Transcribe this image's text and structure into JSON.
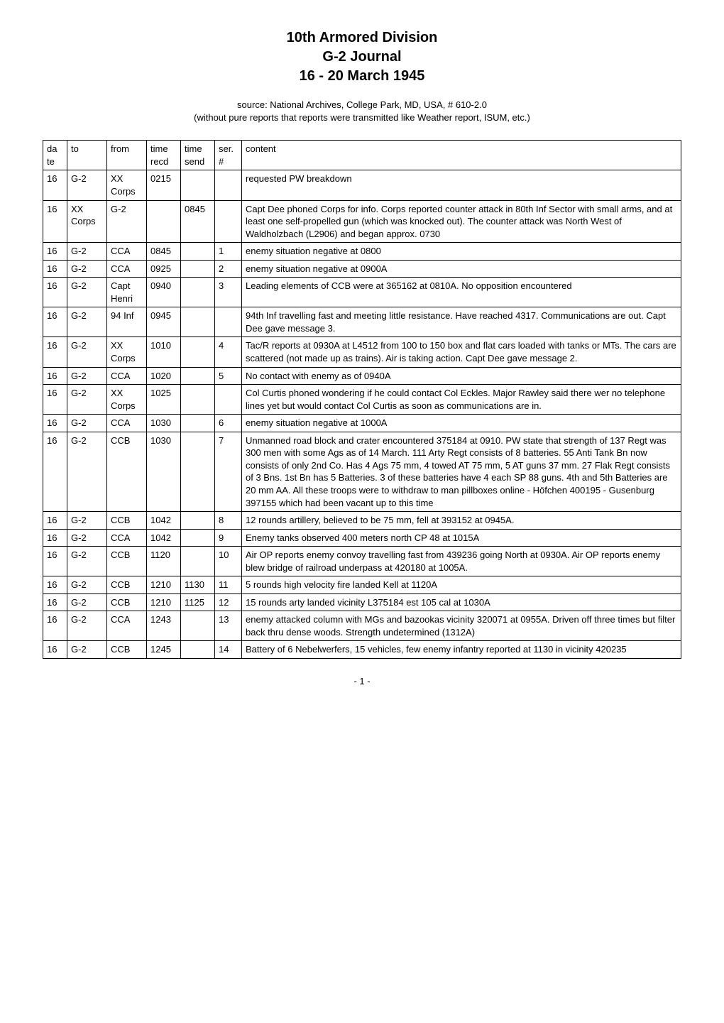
{
  "title": {
    "line1": "10th Armored Division",
    "line2": "G-2 Journal",
    "line3": "16 - 20 March 1945"
  },
  "source": {
    "line1": "source: National Archives, College Park, MD, USA, # 610-2.0",
    "line2": "(without pure reports that reports were transmitted like Weather report, ISUM, etc.)"
  },
  "headers": {
    "date": "da te",
    "to": "to",
    "from": "from",
    "time_recd": "time recd",
    "time_send": "time send",
    "ser": "ser. #",
    "content": "content"
  },
  "rows": [
    {
      "date": "16",
      "to": "G-2",
      "from": "XX Corps",
      "trecd": "0215",
      "tsend": "",
      "ser": "",
      "content": "requested PW breakdown"
    },
    {
      "date": "16",
      "to": "XX Corps",
      "from": "G-2",
      "trecd": "",
      "tsend": "0845",
      "ser": "",
      "content": "Capt Dee phoned Corps for info. Corps reported counter attack in 80th Inf Sector with small arms, and at least one self-propelled gun (which was knocked out). The counter attack was North West of Waldholzbach (L2906) and began approx. 0730"
    },
    {
      "date": "16",
      "to": "G-2",
      "from": "CCA",
      "trecd": "0845",
      "tsend": "",
      "ser": "1",
      "content": "enemy situation negative at 0800"
    },
    {
      "date": "16",
      "to": "G-2",
      "from": "CCA",
      "trecd": "0925",
      "tsend": "",
      "ser": "2",
      "content": "enemy situation negative at 0900A"
    },
    {
      "date": "16",
      "to": "G-2",
      "from": "Capt Henri",
      "trecd": "0940",
      "tsend": "",
      "ser": "3",
      "content": "Leading elements of CCB were at 365162 at 0810A. No opposition encountered"
    },
    {
      "date": "16",
      "to": "G-2",
      "from": "94 Inf",
      "trecd": "0945",
      "tsend": "",
      "ser": "",
      "content": "94th Inf travelling fast and meeting little resistance. Have reached 4317. Communications are out. Capt Dee gave message 3."
    },
    {
      "date": "16",
      "to": "G-2",
      "from": "XX Corps",
      "trecd": "1010",
      "tsend": "",
      "ser": "4",
      "content": "Tac/R reports at 0930A at L4512 from 100 to 150 box and flat cars loaded with tanks or MTs. The cars are scattered (not made up as trains). Air is taking action. Capt Dee gave message 2."
    },
    {
      "date": "16",
      "to": "G-2",
      "from": "CCA",
      "trecd": "1020",
      "tsend": "",
      "ser": "5",
      "content": "No contact with enemy as of 0940A"
    },
    {
      "date": "16",
      "to": "G-2",
      "from": "XX Corps",
      "trecd": "1025",
      "tsend": "",
      "ser": "",
      "content": "Col Curtis phoned wondering if he could contact Col Eckles. Major Rawley said there wer no telephone lines yet but would contact Col Curtis as soon as communications are in."
    },
    {
      "date": "16",
      "to": "G-2",
      "from": "CCA",
      "trecd": "1030",
      "tsend": "",
      "ser": "6",
      "content": "enemy situation negative at 1000A"
    },
    {
      "date": "16",
      "to": "G-2",
      "from": "CCB",
      "trecd": "1030",
      "tsend": "",
      "ser": "7",
      "content": "Unmanned road block and crater encountered 375184 at 0910. PW state that strength of 137 Regt was 300 men with some Ags as of 14 March. 111 Arty Regt consists of 8 batteries. 55 Anti Tank Bn now consists of only 2nd Co. Has 4 Ags 75 mm, 4 towed AT 75 mm, 5 AT guns 37 mm. 27 Flak Regt consists of 3 Bns. 1st Bn has 5 Batteries. 3 of these batteries have 4 each SP 88 guns. 4th and 5th Batteries are 20 mm AA. All these troops were to withdraw to man pillboxes online - Höfchen 400195 - Gusenburg 397155 which had been vacant up to this time"
    },
    {
      "date": "16",
      "to": "G-2",
      "from": "CCB",
      "trecd": "1042",
      "tsend": "",
      "ser": "8",
      "content": "12 rounds artillery, believed to be 75 mm, fell at 393152 at 0945A."
    },
    {
      "date": "16",
      "to": "G-2",
      "from": "CCA",
      "trecd": "1042",
      "tsend": "",
      "ser": "9",
      "content": "Enemy tanks observed 400 meters north CP 48 at 1015A"
    },
    {
      "date": "16",
      "to": "G-2",
      "from": "CCB",
      "trecd": "1120",
      "tsend": "",
      "ser": "10",
      "content": "Air OP reports enemy convoy travelling fast from 439236 going North at 0930A. Air OP reports enemy blew bridge of railroad underpass at 420180 at 1005A."
    },
    {
      "date": "16",
      "to": "G-2",
      "from": "CCB",
      "trecd": "1210",
      "tsend": "1130",
      "ser": "11",
      "content": "5 rounds high velocity fire landed Kell at 1120A"
    },
    {
      "date": "16",
      "to": "G-2",
      "from": "CCB",
      "trecd": "1210",
      "tsend": "1125",
      "ser": "12",
      "content": "15 rounds arty landed vicinity L375184 est 105 cal at 1030A"
    },
    {
      "date": "16",
      "to": "G-2",
      "from": "CCA",
      "trecd": "1243",
      "tsend": "",
      "ser": "13",
      "content": "enemy attacked column with MGs and bazookas vicinity 320071 at 0955A. Driven off three times but filter back thru dense woods. Strength undetermined (1312A)"
    },
    {
      "date": "16",
      "to": "G-2",
      "from": "CCB",
      "trecd": "1245",
      "tsend": "",
      "ser": "14",
      "content": "Battery of 6 Nebelwerfers, 15 vehicles, few enemy infantry reported at 1130 in vicinity 420235"
    }
  ],
  "page_num": "- 1 -",
  "style": {
    "background_color": "#ffffff",
    "text_color": "#000000",
    "border_color": "#000000",
    "title_fontsize": 20,
    "body_fontsize": 13,
    "font_family": "Verdana, Geneva, sans-serif"
  }
}
